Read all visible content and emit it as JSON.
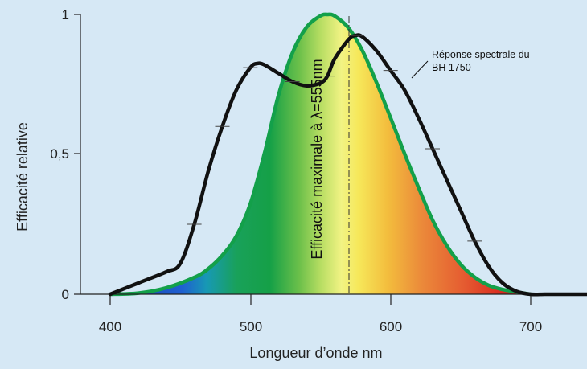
{
  "chart_data": {
    "type": "line",
    "xlabel": "Longueur d’onde nm",
    "ylabel": "Efficacité relative",
    "xlim": [
      400,
      745
    ],
    "ylim": [
      0,
      1
    ],
    "x_ticks": [
      "400",
      "500",
      "600",
      "700"
    ],
    "y_ticks": [
      "0",
      "0,5",
      "1"
    ],
    "grid": false,
    "colors": {
      "background": "#d6e8f5",
      "eye_curve": "#13a04a",
      "sensor_curve": "#111111"
    },
    "series": [
      {
        "label": "Réponse spectrale du BH 1750",
        "x": [
          400,
          420,
          440,
          450,
          460,
          470,
          480,
          490,
          500,
          505,
          510,
          520,
          530,
          540,
          550,
          555,
          560,
          570,
          575,
          580,
          590,
          600,
          610,
          620,
          630,
          640,
          650,
          660,
          670,
          680,
          690,
          700,
          710,
          720,
          730,
          745
        ],
        "y": [
          0.0,
          0.04,
          0.08,
          0.11,
          0.25,
          0.44,
          0.6,
          0.73,
          0.81,
          0.825,
          0.82,
          0.79,
          0.76,
          0.745,
          0.755,
          0.78,
          0.84,
          0.91,
          0.925,
          0.92,
          0.87,
          0.8,
          0.73,
          0.63,
          0.52,
          0.41,
          0.3,
          0.19,
          0.1,
          0.04,
          0.01,
          0.0,
          0.0,
          0.0,
          0.0,
          0.0
        ]
      },
      {
        "label": "Efficacité maximale à λ=555nm",
        "x": [
          400,
          420,
          440,
          460,
          470,
          480,
          490,
          500,
          510,
          520,
          530,
          540,
          550,
          555,
          560,
          570,
          580,
          590,
          600,
          610,
          620,
          630,
          640,
          650,
          660,
          670,
          680,
          690,
          700
        ],
        "y": [
          0.0,
          0.004,
          0.023,
          0.06,
          0.091,
          0.139,
          0.208,
          0.323,
          0.503,
          0.71,
          0.862,
          0.954,
          0.995,
          1.0,
          0.995,
          0.952,
          0.87,
          0.757,
          0.631,
          0.503,
          0.381,
          0.265,
          0.175,
          0.107,
          0.061,
          0.032,
          0.017,
          0.008,
          0.0
        ]
      }
    ],
    "annotations": {
      "sensor_label_line1": "Réponse spectrale du",
      "sensor_label_line2": "BH 1750",
      "peak_label": "Efficacité maximale à λ=555nm"
    }
  }
}
